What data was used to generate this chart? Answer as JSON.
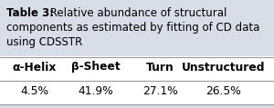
{
  "title_bold": "Table 3:",
  "title_rest": "  Relative abundance of structural\ncomponents as estimated by fitting of CD data\nusing CDSSTR",
  "headers": [
    "α-Helix",
    "β-Sheet",
    "Turn",
    "Unstructured"
  ],
  "values": [
    "4.5%",
    "41.9%",
    "27.1%",
    "26.5%"
  ],
  "bg_color": "#d8dde8",
  "table_bg_color": "#ffffff",
  "text_color": "#000000",
  "line_color": "#999999",
  "title_fontsize": 8.5,
  "table_fontsize": 8.8,
  "figsize": [
    3.0,
    1.19
  ],
  "dpi": 100
}
